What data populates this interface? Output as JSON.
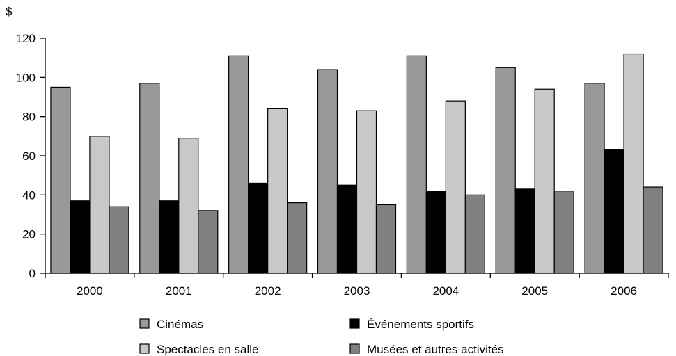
{
  "chart_data": {
    "type": "bar",
    "title": "",
    "xlabel": "",
    "ylabel": "$",
    "ylim": [
      0,
      120
    ],
    "yticks": [
      0,
      20,
      40,
      60,
      80,
      100,
      120
    ],
    "grid": false,
    "legend_position": "bottom",
    "categories": [
      "2000",
      "2001",
      "2002",
      "2003",
      "2004",
      "2005",
      "2006"
    ],
    "series": [
      {
        "name": "Cinémas",
        "color": "#999999",
        "values": [
          95,
          97,
          111,
          104,
          111,
          105,
          97
        ]
      },
      {
        "name": "Événements sportifs",
        "color": "#000000",
        "values": [
          37,
          37,
          46,
          45,
          42,
          43,
          63
        ]
      },
      {
        "name": "Spectacles en salle",
        "color": "#c8c8c8",
        "values": [
          70,
          69,
          84,
          83,
          88,
          94,
          112
        ]
      },
      {
        "name": "Musées et autres activités",
        "color": "#808080",
        "values": [
          34,
          32,
          36,
          35,
          40,
          42,
          44
        ]
      }
    ]
  }
}
